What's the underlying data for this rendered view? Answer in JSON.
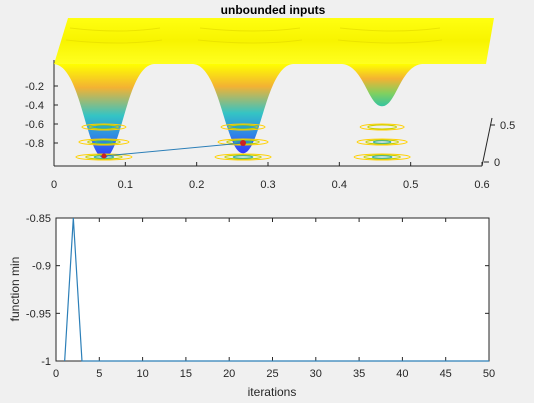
{
  "figure": {
    "background": "#f0f0f0"
  },
  "chart_data": [
    {
      "type": "surface",
      "title": "unbounded inputs",
      "xlabel": "",
      "ylabel": "",
      "zlabel": "",
      "xlim": [
        0,
        0.6
      ],
      "ylim": [
        0,
        0.6
      ],
      "zlim": [
        -1,
        0
      ],
      "x_ticks": [
        "0",
        "0.1",
        "0.2",
        "0.3",
        "0.4",
        "0.5",
        "0.6"
      ],
      "y_ticks": [
        "0",
        "0.5"
      ],
      "z_ticks": [
        "-0.2",
        "-0.4",
        "-0.6",
        "-0.8"
      ],
      "wells": [
        {
          "x": 0.07,
          "depth": -1.0
        },
        {
          "x": 0.265,
          "depth": -0.95
        },
        {
          "x": 0.46,
          "depth": -0.45
        }
      ],
      "path": [
        {
          "x": 0.07,
          "z": -1.0
        },
        {
          "x": 0.265,
          "z": -0.85
        }
      ],
      "colors": {
        "top": "#ffff00",
        "mid": "#f0a030",
        "low": "#30c0d0",
        "bottom": "#3030ff",
        "path": "#2c7fb8",
        "marker": "#cc2222",
        "contour": "#ffd000"
      },
      "grid": false
    },
    {
      "type": "line",
      "title": "",
      "xlabel": "iterations",
      "ylabel": "function min",
      "xlim": [
        0,
        50
      ],
      "ylim": [
        -1,
        -0.85
      ],
      "x_ticks": [
        "0",
        "5",
        "10",
        "15",
        "20",
        "25",
        "30",
        "35",
        "40",
        "45",
        "50"
      ],
      "y_ticks": [
        "-0.85",
        "-0.9",
        "-0.95",
        "-1"
      ],
      "series": [
        {
          "x": [
            1,
            2,
            3,
            4,
            5,
            6,
            7,
            8,
            9,
            10,
            11,
            12,
            13,
            14,
            15,
            16,
            17,
            18,
            19,
            20,
            21,
            22,
            23,
            24,
            25,
            26,
            27,
            28,
            29,
            30,
            31,
            32,
            33,
            34,
            35,
            36,
            37,
            38,
            39,
            40,
            41,
            42,
            43,
            44,
            45,
            46,
            47,
            48,
            49,
            50
          ],
          "y": [
            -1,
            -0.85,
            -1,
            -1,
            -1,
            -1,
            -1,
            -1,
            -1,
            -1,
            -1,
            -1,
            -1,
            -1,
            -1,
            -1,
            -1,
            -1,
            -1,
            -1,
            -1,
            -1,
            -1,
            -1,
            -1,
            -1,
            -1,
            -1,
            -1,
            -1,
            -1,
            -1,
            -1,
            -1,
            -1,
            -1,
            -1,
            -1,
            -1,
            -1,
            -1,
            -1,
            -1,
            -1,
            -1,
            -1,
            -1,
            -1,
            -1,
            -1
          ],
          "color": "#2c7fb8"
        }
      ],
      "grid": false
    }
  ]
}
